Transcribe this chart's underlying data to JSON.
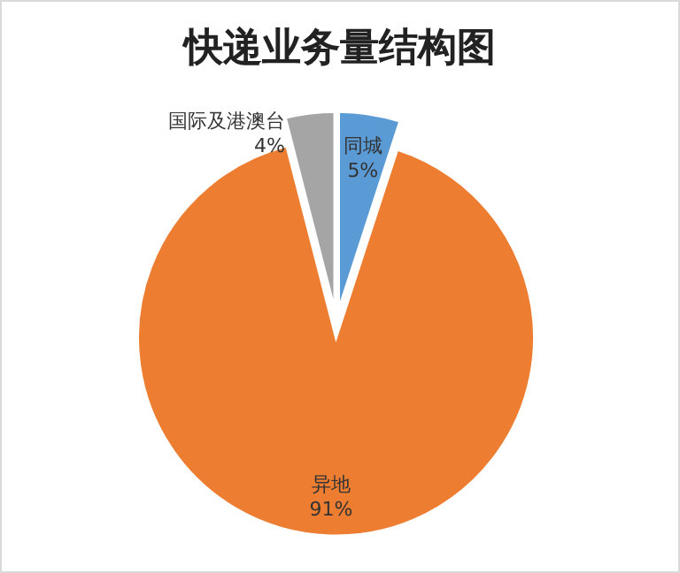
{
  "chart_data": {
    "type": "pie",
    "title": "快递业务量结构图",
    "categories": [
      "同城",
      "异地",
      "国际及港澳台"
    ],
    "values": [
      5,
      91,
      4
    ],
    "value_labels": [
      "5%",
      "91%",
      "4%"
    ],
    "colors": [
      "#5b9bd5",
      "#ed7d31",
      "#a5a5a5"
    ]
  }
}
